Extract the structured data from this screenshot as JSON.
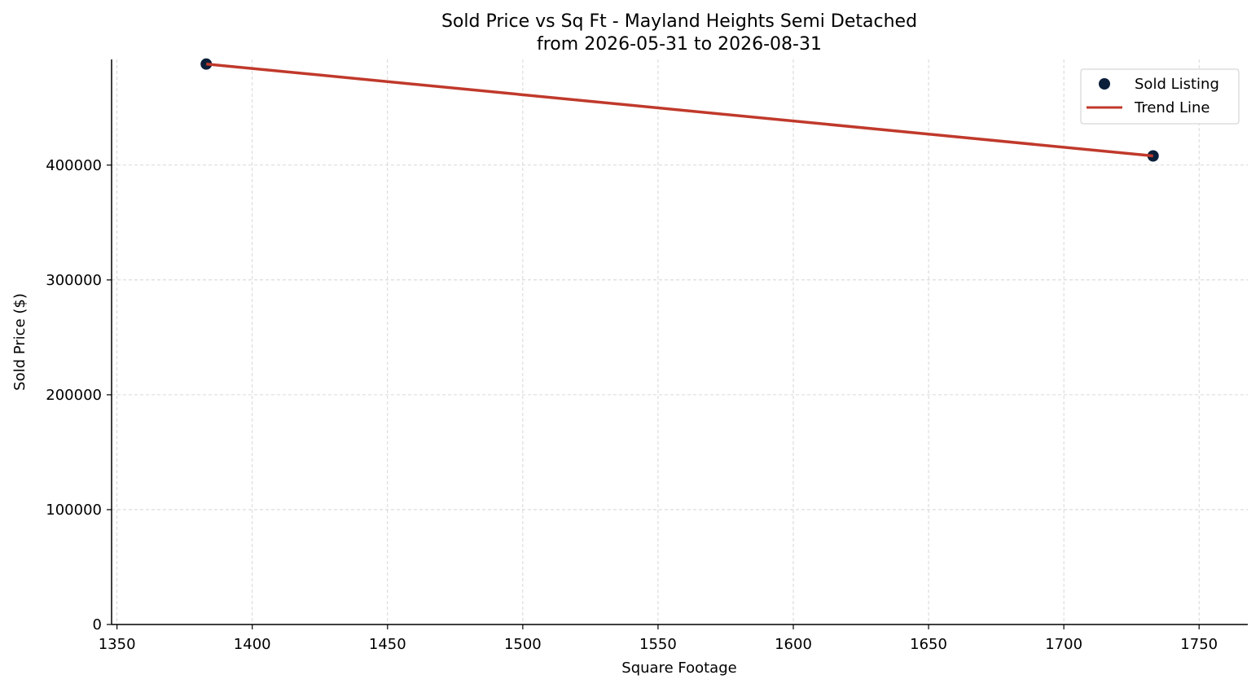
{
  "chart_data": {
    "type": "scatter",
    "title": "Sold Price vs Sq Ft - Mayland Heights Semi Detached",
    "subtitle": "from 2026-05-31 to 2026-08-31",
    "xlabel": "Square Footage",
    "ylabel": "Sold Price ($)",
    "xlim": [
      1348,
      1768
    ],
    "ylim": [
      0,
      492000
    ],
    "xticks": [
      1350,
      1400,
      1450,
      1500,
      1550,
      1600,
      1650,
      1700,
      1750
    ],
    "yticks": [
      0,
      100000,
      200000,
      300000,
      400000
    ],
    "grid": true,
    "legend_position": "top-right",
    "series": [
      {
        "name": "Sold Listing",
        "kind": "scatter",
        "color": "#0b1f3a",
        "points": [
          {
            "x": 1383,
            "y": 488000
          },
          {
            "x": 1733,
            "y": 408000
          }
        ]
      },
      {
        "name": "Trend Line",
        "kind": "line",
        "color": "#c0392b",
        "points": [
          {
            "x": 1383,
            "y": 488000
          },
          {
            "x": 1733,
            "y": 408000
          }
        ]
      }
    ]
  }
}
